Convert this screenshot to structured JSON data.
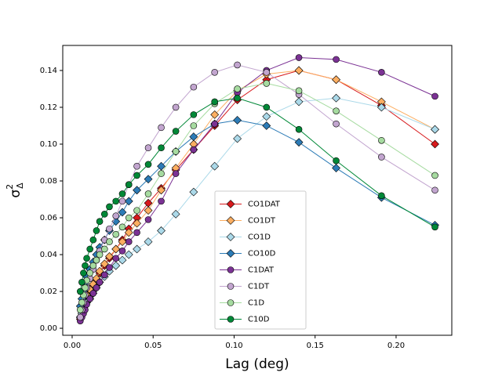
{
  "chart_data": {
    "type": "line",
    "xlabel": "Lag (deg)",
    "ylabel": {
      "symbol": "σ",
      "superscript": "2",
      "subscript": "Δ"
    },
    "x": [
      0.005,
      0.006,
      0.007,
      0.008,
      0.009,
      0.011,
      0.013,
      0.015,
      0.017,
      0.02,
      0.023,
      0.027,
      0.031,
      0.035,
      0.04,
      0.047,
      0.055,
      0.064,
      0.075,
      0.088,
      0.102,
      0.12,
      0.14,
      0.163,
      0.191,
      0.224
    ],
    "xlim": [
      -0.0058,
      0.2344
    ],
    "ylim": [
      -0.0038,
      0.1536
    ],
    "xticks": [
      {
        "value": 0,
        "label": "0.00"
      },
      {
        "value": 0.05,
        "label": "0.05"
      },
      {
        "value": 0.1,
        "label": "0.10"
      },
      {
        "value": 0.15,
        "label": "0.15"
      },
      {
        "value": 0.2,
        "label": "0.20"
      }
    ],
    "yticks": [
      {
        "value": 0,
        "label": "0.00"
      },
      {
        "value": 0.02,
        "label": "0.02"
      },
      {
        "value": 0.04,
        "label": "0.04"
      },
      {
        "value": 0.06,
        "label": "0.06"
      },
      {
        "value": 0.08,
        "label": "0.08"
      },
      {
        "value": 0.1,
        "label": "0.10"
      },
      {
        "value": 0.12,
        "label": "0.12"
      },
      {
        "value": 0.14,
        "label": "0.14"
      }
    ],
    "legend": "lower center",
    "series": [
      {
        "name": "CO1DAT",
        "color": "#d7191c",
        "marker": "diamond",
        "values": [
          0.005,
          0.008,
          0.011,
          0.014,
          0.017,
          0.02,
          0.023,
          0.026,
          0.03,
          0.034,
          0.038,
          0.043,
          0.048,
          0.054,
          0.06,
          0.068,
          0.076,
          0.086,
          0.097,
          0.11,
          0.124,
          0.135,
          0.14,
          0.135,
          0.121,
          0.1
        ]
      },
      {
        "name": "CO1DT",
        "color": "#fdae61",
        "marker": "diamond",
        "values": [
          0.006,
          0.009,
          0.012,
          0.015,
          0.018,
          0.021,
          0.024,
          0.027,
          0.031,
          0.035,
          0.039,
          0.043,
          0.047,
          0.052,
          0.057,
          0.064,
          0.075,
          0.087,
          0.1,
          0.116,
          0.129,
          0.138,
          0.14,
          0.135,
          0.123,
          0.108
        ]
      },
      {
        "name": "CO1D",
        "color": "#abd9e9",
        "marker": "diamond",
        "values": [
          0.006,
          0.008,
          0.01,
          0.012,
          0.014,
          0.016,
          0.019,
          0.022,
          0.025,
          0.028,
          0.031,
          0.034,
          0.037,
          0.04,
          0.043,
          0.047,
          0.053,
          0.062,
          0.074,
          0.088,
          0.103,
          0.115,
          0.123,
          0.125,
          0.12,
          0.108
        ]
      },
      {
        "name": "CO10D",
        "color": "#2c7bb6",
        "marker": "diamond",
        "values": [
          0.012,
          0.016,
          0.02,
          0.024,
          0.028,
          0.032,
          0.036,
          0.04,
          0.044,
          0.048,
          0.053,
          0.058,
          0.063,
          0.069,
          0.075,
          0.081,
          0.088,
          0.096,
          0.104,
          0.111,
          0.113,
          0.11,
          0.101,
          0.087,
          0.071,
          0.056
        ]
      },
      {
        "name": "C1DAT",
        "color": "#7b3294",
        "marker": "circle",
        "values": [
          0.004,
          0.006,
          0.008,
          0.01,
          0.013,
          0.016,
          0.019,
          0.022,
          0.025,
          0.029,
          0.033,
          0.038,
          0.042,
          0.047,
          0.052,
          0.059,
          0.069,
          0.084,
          0.097,
          0.111,
          0.128,
          0.14,
          0.147,
          0.146,
          0.139,
          0.126
        ]
      },
      {
        "name": "C1DT",
        "color": "#c2a5cf",
        "marker": "circle",
        "values": [
          0.006,
          0.01,
          0.014,
          0.018,
          0.022,
          0.027,
          0.032,
          0.037,
          0.042,
          0.048,
          0.054,
          0.061,
          0.069,
          0.078,
          0.088,
          0.098,
          0.109,
          0.12,
          0.131,
          0.139,
          0.143,
          0.139,
          0.127,
          0.111,
          0.093,
          0.075
        ]
      },
      {
        "name": "C1D",
        "color": "#a6dba0",
        "marker": "circle",
        "values": [
          0.01,
          0.014,
          0.018,
          0.022,
          0.026,
          0.03,
          0.034,
          0.037,
          0.04,
          0.043,
          0.047,
          0.051,
          0.055,
          0.06,
          0.064,
          0.073,
          0.084,
          0.096,
          0.11,
          0.122,
          0.13,
          0.133,
          0.129,
          0.118,
          0.102,
          0.083
        ]
      },
      {
        "name": "C10D",
        "color": "#008837",
        "marker": "circle",
        "values": [
          0.02,
          0.025,
          0.03,
          0.034,
          0.038,
          0.043,
          0.048,
          0.053,
          0.058,
          0.062,
          0.066,
          0.069,
          0.073,
          0.078,
          0.083,
          0.089,
          0.098,
          0.107,
          0.116,
          0.123,
          0.125,
          0.12,
          0.108,
          0.091,
          0.072,
          0.055
        ]
      }
    ]
  }
}
